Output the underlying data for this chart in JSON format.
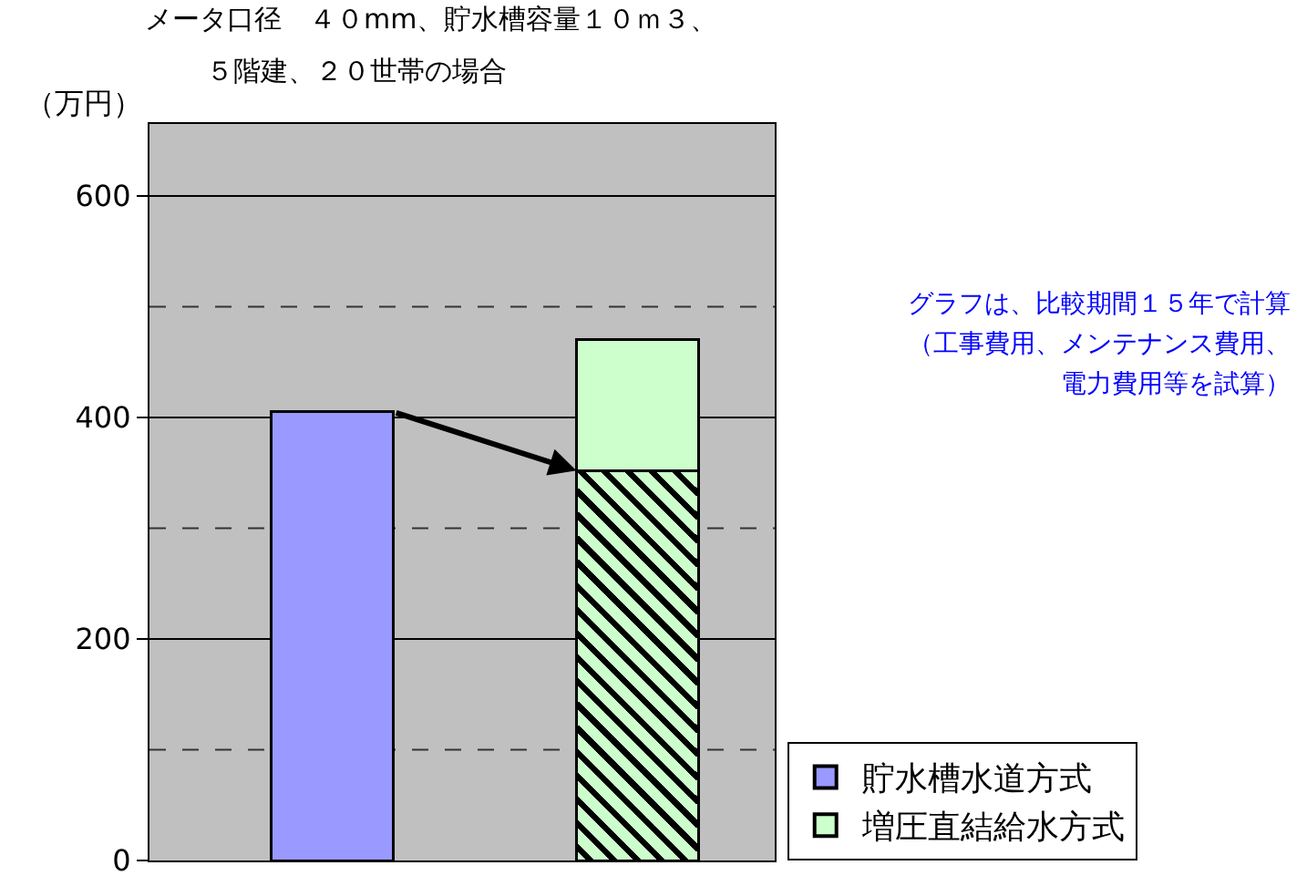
{
  "chart_data": {
    "type": "bar",
    "title": "メータ口径　４０mm、貯水槽容量１０ｍ３、",
    "subtitle": "５階建、２０世帯の場合",
    "ylabel": "（万円）",
    "categories": [
      null,
      null
    ],
    "stacked": true,
    "series": [
      {
        "name": "貯水槽水道方式",
        "color": "#9999ff",
        "values": [
          405,
          null
        ]
      },
      {
        "color": "#ccffcc",
        "values": [
          null,
          352
        ]
      },
      {
        "name": "増圧直結給水方式",
        "color": "#ccffcc",
        "values": [
          null,
          118
        ]
      }
    ],
    "ylim": [
      0,
      665
    ],
    "yticks": [
      0,
      {
        "value": 100,
        "label": null
      },
      200,
      {
        "value": 300,
        "label": null
      },
      400,
      {
        "value": 500,
        "label": null
      },
      600
    ],
    "grid": "y",
    "legend": "bottom right",
    "tick_labels": "y",
    "annotations": [
      "グラフは、比較期間１５年で計算",
      "（工事費用、メンテナンス費用、",
      "電力費用等を試算）"
    ]
  }
}
